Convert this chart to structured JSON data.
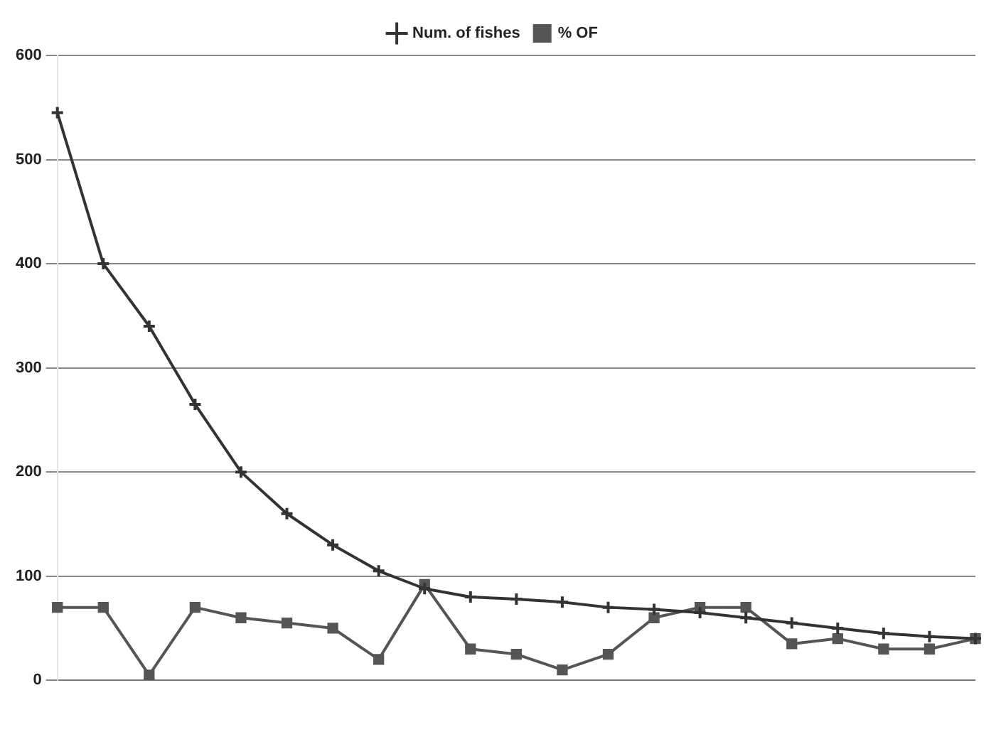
{
  "chart_data": {
    "type": "line",
    "categories": [
      null,
      null,
      null,
      null,
      null,
      null,
      null,
      null,
      null,
      null,
      null,
      null,
      null,
      null,
      null,
      null,
      null,
      null,
      null,
      null,
      null
    ],
    "series": [
      {
        "name": "Num. of fishes",
        "color": "#333333",
        "marker": "cross",
        "values": [
          545,
          400,
          340,
          265,
          200,
          160,
          130,
          105,
          88,
          80,
          78,
          75,
          70,
          68,
          65,
          60,
          55,
          50,
          45,
          42,
          40
        ]
      },
      {
        "name": "% OF",
        "color": "#555555",
        "marker": "square",
        "values": [
          70,
          70,
          5,
          70,
          60,
          55,
          50,
          20,
          92,
          30,
          25,
          10,
          25,
          60,
          70,
          70,
          35,
          40,
          30,
          30,
          40
        ]
      }
    ],
    "ylim": [
      0,
      600
    ],
    "yticks": [
      0,
      100,
      200,
      300,
      400,
      500,
      600
    ],
    "grid": "y",
    "legend": "top",
    "line_style": "solid"
  }
}
